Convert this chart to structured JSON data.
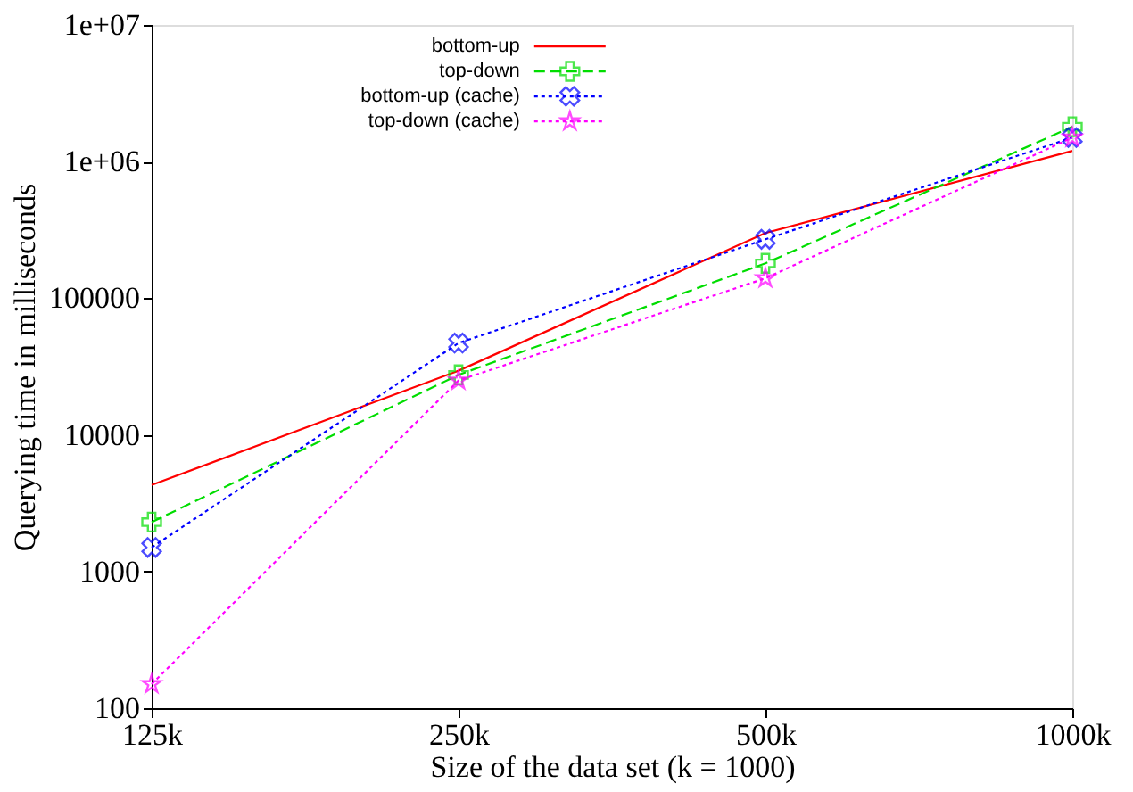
{
  "chart_data": {
    "type": "line",
    "xlabel": "Size of the data set (k = 1000)",
    "ylabel": "Querying time in milliseconds",
    "categories": [
      "125k",
      "250k",
      "500k",
      "1000k"
    ],
    "log": true,
    "ylim": [
      100,
      10000000
    ],
    "yticks": [
      100,
      1000,
      10000,
      100000,
      {
        "value": 1000000,
        "label": "1e+06"
      },
      {
        "value": 10000000,
        "label": "1e+07"
      }
    ],
    "grid": false,
    "legend": "top left",
    "series": [
      {
        "name": "bottom-up",
        "color": "#ff0000",
        "line_style": "solid",
        "marker": "none",
        "values": [
          4300,
          29500,
          300000,
          1200000
        ]
      },
      {
        "name": "top-down",
        "color": "#00dd00",
        "line_style": "dashed",
        "marker": "cross",
        "values": [
          2300,
          27500,
          180000,
          1800000
        ]
      },
      {
        "name": "bottom-up (cache)",
        "color": "#0000ff",
        "line_style": "dotted",
        "marker": "cross",
        "values": [
          1500,
          47000,
          270000,
          1500000
        ]
      },
      {
        "name": "top-down (cache)",
        "color": "#ff00ff",
        "line_style": "dotted",
        "marker": "star",
        "values": [
          150,
          25000,
          140000,
          1500000
        ]
      }
    ]
  }
}
